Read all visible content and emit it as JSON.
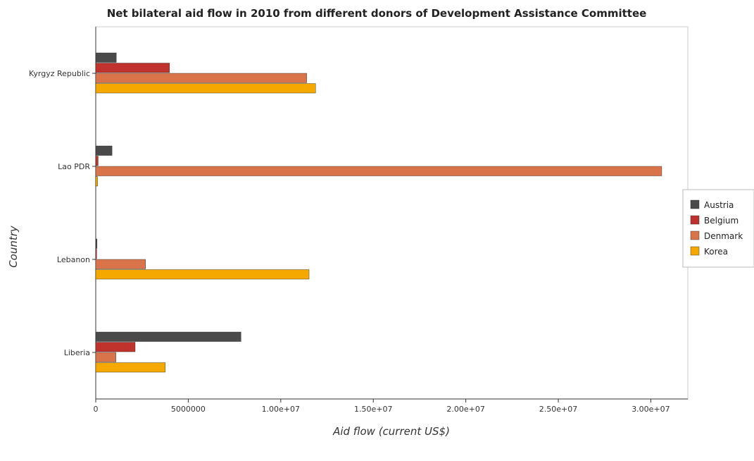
{
  "chart_data": {
    "type": "bar",
    "orientation": "horizontal",
    "title": "Net bilateral aid flow in 2010 from different donors of Development Assistance Committee",
    "xlabel": "Aid flow (current US$)",
    "ylabel": "Country",
    "categories": [
      "Kyrgyz Republic",
      "Lao PDR",
      "Lebanon",
      "Liberia"
    ],
    "series": [
      {
        "name": "Austria",
        "color": "#4a4a4a",
        "values": [
          1110000,
          880000,
          70000,
          7850000
        ]
      },
      {
        "name": "Belgium",
        "color": "#c0332d",
        "values": [
          3990000,
          130000,
          50000,
          2130000
        ]
      },
      {
        "name": "Denmark",
        "color": "#d9734a",
        "values": [
          11400000,
          30590000,
          2690000,
          1090000
        ]
      },
      {
        "name": "Korea",
        "color": "#f5a800",
        "values": [
          11880000,
          100000,
          11530000,
          3760000
        ]
      }
    ],
    "xlim": [
      0,
      32000000
    ],
    "xticks": [
      0,
      5000000,
      10000000,
      15000000,
      20000000,
      25000000,
      30000000
    ],
    "xtick_labels": [
      "0",
      "5000000",
      "1.00e+07",
      "1.50e+07",
      "2.00e+07",
      "2.50e+07",
      "3.00e+07"
    ],
    "grid": false,
    "legend_position": "right"
  }
}
